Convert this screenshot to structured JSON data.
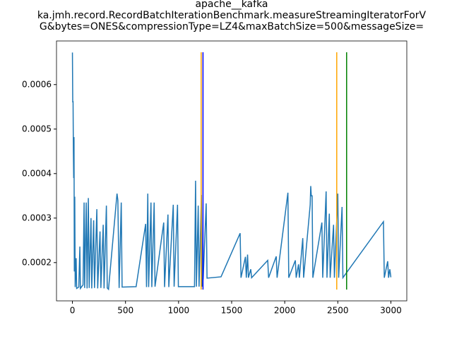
{
  "chart_data": {
    "type": "line",
    "title_lines": [
      "apache__kafka",
      "ka.jmh.record.RecordBatchIterationBenchmark.measureStreamingIteratorForV",
      "G&bytes=ONES&compressionType=LZ4&maxBatchSize=500&messageSize="
    ],
    "x": [
      0,
      3,
      6,
      9,
      12,
      15,
      18,
      22,
      26,
      35,
      40,
      60,
      70,
      75,
      100,
      110,
      115,
      130,
      138,
      150,
      158,
      175,
      182,
      200,
      208,
      230,
      238,
      260,
      268,
      290,
      298,
      320,
      328,
      340,
      420,
      428,
      440,
      460,
      468,
      600,
      690,
      698,
      710,
      718,
      740,
      748,
      770,
      778,
      860,
      868,
      900,
      908,
      950,
      958,
      990,
      998,
      1150,
      1160,
      1168,
      1185,
      1193,
      1215,
      1222,
      1232,
      1260,
      1268,
      1400,
      1580,
      1588,
      1630,
      1638,
      1650,
      1658,
      1680,
      1688,
      1840,
      1848,
      1920,
      1928,
      2030,
      2038,
      2100,
      2108,
      2130,
      2138,
      2170,
      2178,
      2240,
      2245,
      2250,
      2258,
      2265,
      2350,
      2358,
      2390,
      2398,
      2420,
      2428,
      2460,
      2468,
      2500,
      2508,
      2540,
      2548,
      2930,
      2938,
      2970,
      2978,
      2990,
      3000
    ],
    "series": [
      {
        "color": "#1f77b4",
        "values": [
          0.000672,
          0.00056,
          0.000563,
          0.00045,
          0.00039,
          0.000482,
          0.00018,
          0.000348,
          0.000145,
          0.00021,
          0.000142,
          0.000145,
          0.000236,
          0.000142,
          0.00015,
          0.000335,
          0.000143,
          0.000335,
          0.000142,
          0.000345,
          0.000143,
          0.0003,
          0.000142,
          0.000295,
          0.000143,
          0.00032,
          0.000142,
          0.00027,
          0.000143,
          0.000285,
          0.000142,
          0.000328,
          0.000143,
          0.00014,
          0.000355,
          0.00034,
          0.000143,
          0.000335,
          0.000145,
          0.000146,
          0.000287,
          0.000145,
          0.000355,
          0.000145,
          0.000335,
          0.000145,
          0.000335,
          0.000146,
          0.00029,
          0.000145,
          0.000308,
          0.000145,
          0.00033,
          0.000146,
          0.00033,
          0.000146,
          0.000146,
          0.000384,
          0.000146,
          0.000328,
          0.000146,
          0.000352,
          0.000146,
          0.000165,
          0.000333,
          0.000165,
          0.000168,
          0.000266,
          0.000166,
          0.000213,
          0.000166,
          0.000218,
          0.000166,
          0.000185,
          0.000166,
          0.000205,
          0.000166,
          0.000214,
          0.000166,
          0.000357,
          0.000166,
          0.000205,
          0.000166,
          0.000196,
          0.000166,
          0.000255,
          0.000166,
          0.00033,
          0.000372,
          0.00035,
          0.00035,
          0.000166,
          0.00029,
          0.000166,
          0.00036,
          0.000166,
          0.00031,
          0.000166,
          0.000285,
          0.000166,
          0.000355,
          0.000166,
          0.000325,
          0.000166,
          0.000292,
          0.000166,
          0.000203,
          0.000166,
          0.000185,
          0.000167
        ]
      }
    ],
    "vlines": [
      {
        "x": 1213,
        "color": "orange"
      },
      {
        "x": 1230,
        "color": "blue"
      },
      {
        "x": 2490,
        "color": "orange"
      },
      {
        "x": 2583,
        "color": "green"
      }
    ],
    "xlim": [
      -150,
      3150
    ],
    "ylim": [
      0.000114,
      0.000698
    ],
    "xticks": [
      0,
      500,
      1000,
      1500,
      2000,
      2500,
      3000
    ],
    "yticks": [
      0.0002,
      0.0003,
      0.0004,
      0.0005,
      0.0006
    ]
  }
}
